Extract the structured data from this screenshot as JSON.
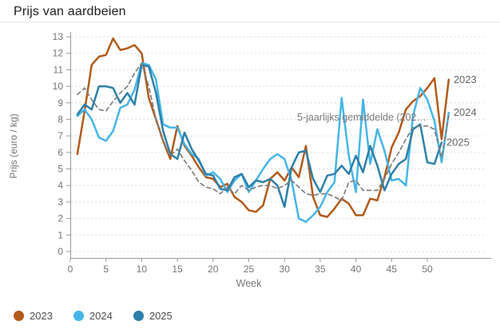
{
  "title": "Prijs van aardbeien",
  "axes": {
    "x_label": "Week",
    "y_label": "Prijs (euro / kg)",
    "x_ticks": [
      0,
      5,
      10,
      15,
      20,
      25,
      30,
      35,
      40,
      45,
      50
    ],
    "y_ticks": [
      0,
      1,
      2,
      3,
      4,
      5,
      6,
      7,
      8,
      9,
      10,
      11,
      12,
      13
    ]
  },
  "annotation": "5-jaarlijks gemiddelde (202…",
  "legend": [
    {
      "label": "2023",
      "color": "#b25a1b"
    },
    {
      "label": "2024",
      "color": "#45b5e8"
    },
    {
      "label": "2025",
      "color": "#2e7fa8"
    }
  ],
  "colors": {
    "series_2023": "#b25a1b",
    "series_2024": "#45b5e8",
    "series_2025": "#2e7fa8",
    "average_line": "#7f7f7f",
    "grid": "#dcdcdc",
    "axis": "#9a9a9a",
    "tick_text": "#757575",
    "end_label_text": "#666666",
    "title_text": "#202020"
  },
  "chart_data": {
    "type": "line",
    "title": "Prijs van aardbeien",
    "xlabel": "Week",
    "ylabel": "Prijs (euro / kg)",
    "xlim": [
      0,
      54
    ],
    "ylim": [
      0,
      13
    ],
    "grid": true,
    "legend_position": "bottom-left",
    "x_weeks_start": 1,
    "series": [
      {
        "name": "2023",
        "color": "#b25a1b",
        "style": "solid",
        "end_label": "2023",
        "values": [
          5.9,
          8.5,
          11.3,
          11.8,
          11.9,
          12.9,
          12.2,
          12.3,
          12.5,
          12.0,
          9.3,
          8.0,
          6.7,
          5.6,
          7.6,
          6.4,
          5.8,
          5.1,
          4.5,
          4.4,
          3.9,
          4.1,
          3.3,
          3.0,
          2.5,
          2.4,
          2.8,
          4.4,
          4.8,
          4.3,
          5.1,
          4.5,
          6.4,
          3.3,
          2.2,
          2.1,
          2.6,
          3.2,
          2.9,
          2.2,
          2.2,
          3.2,
          3.1,
          4.5,
          6.3,
          7.2,
          8.6,
          9.1,
          9.4,
          9.9,
          10.5,
          6.8,
          10.4
        ]
      },
      {
        "name": "2024",
        "color": "#45b5e8",
        "style": "solid",
        "end_label": "2024",
        "values": [
          8.2,
          8.6,
          8.0,
          6.9,
          6.7,
          7.3,
          8.7,
          8.9,
          9.8,
          11.4,
          11.3,
          10.4,
          7.7,
          7.5,
          7.5,
          6.5,
          5.9,
          5.6,
          4.6,
          4.8,
          4.4,
          3.6,
          4.3,
          4.7,
          3.6,
          4.3,
          5.0,
          5.6,
          5.9,
          5.6,
          4.3,
          2.0,
          1.8,
          2.2,
          2.7,
          3.6,
          4.2,
          9.3,
          5.8,
          3.6,
          9.2,
          5.3,
          7.4,
          6.1,
          4.3,
          4.4,
          4.0,
          8.2,
          9.9,
          9.2,
          7.9,
          5.4,
          8.4
        ]
      },
      {
        "name": "2025",
        "color": "#2e7fa8",
        "style": "solid",
        "end_label": "2025",
        "values": [
          8.3,
          8.9,
          8.6,
          10.0,
          10.0,
          9.9,
          9.0,
          9.6,
          8.9,
          11.3,
          11.2,
          9.6,
          7.3,
          5.9,
          5.6,
          7.2,
          6.2,
          5.5,
          4.7,
          4.6,
          3.8,
          3.7,
          4.5,
          4.7,
          3.9,
          4.3,
          4.2,
          4.4,
          4.0,
          2.7,
          5.1,
          6.0,
          6.1,
          4.4,
          3.6,
          4.6,
          4.7,
          5.2,
          4.7,
          5.8,
          4.8,
          6.4,
          5.2,
          3.7,
          4.7,
          5.3,
          5.6,
          7.4,
          7.7,
          5.4,
          5.3,
          6.6
        ]
      },
      {
        "name": "5-jaarlijks gemiddelde (202…",
        "color": "#7f7f7f",
        "style": "dashed",
        "end_label": "",
        "values": [
          9.5,
          9.9,
          9.2,
          8.6,
          8.5,
          9.1,
          9.6,
          10.0,
          10.8,
          11.4,
          10.0,
          8.0,
          6.7,
          5.8,
          6.2,
          5.5,
          4.9,
          4.2,
          3.9,
          3.8,
          3.5,
          3.9,
          3.5,
          4.0,
          3.7,
          3.9,
          4.0,
          4.0,
          3.8,
          4.0,
          4.3,
          3.9,
          3.5,
          3.4,
          3.5,
          3.5,
          3.3,
          3.1,
          4.2,
          4.3,
          3.7,
          3.7,
          3.7,
          4.4,
          5.3,
          6.0,
          6.8,
          7.5,
          7.6,
          7.6,
          7.4,
          5.7,
          8.2
        ]
      }
    ]
  }
}
